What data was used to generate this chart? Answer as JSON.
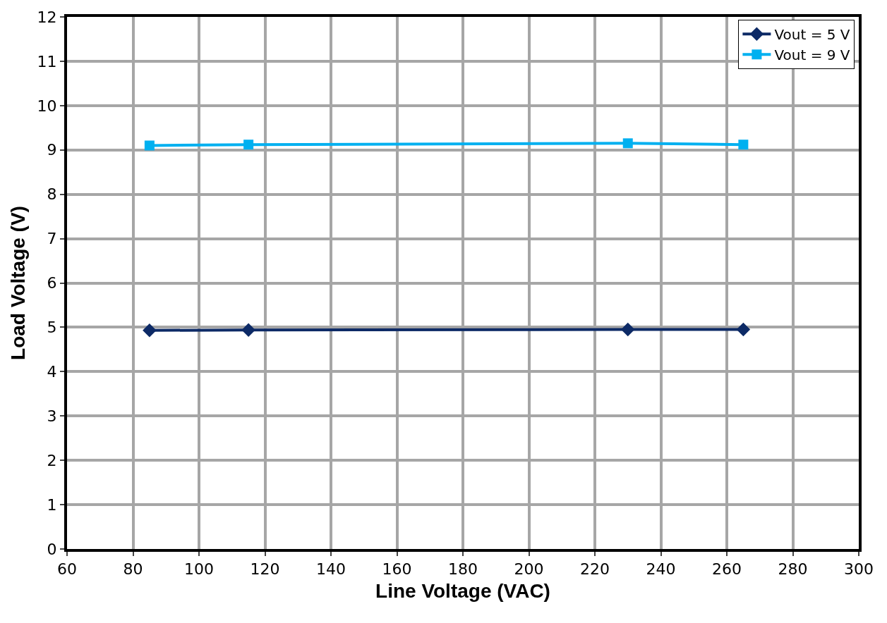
{
  "chart_data": {
    "type": "line",
    "xlabel": "Line Voltage (VAC)",
    "ylabel": "Load Voltage (V)",
    "x": [
      85,
      115,
      230,
      265
    ],
    "series": [
      {
        "name": "Vout = 5 V",
        "color": "#0d2a66",
        "marker": "diamond",
        "values": [
          4.93,
          4.94,
          4.95,
          4.95
        ]
      },
      {
        "name": "Vout = 9 V",
        "color": "#00b0f0",
        "marker": "square",
        "values": [
          9.1,
          9.12,
          9.15,
          9.12
        ]
      }
    ],
    "xlim": [
      60,
      300
    ],
    "xticks": [
      60,
      80,
      100,
      120,
      140,
      160,
      180,
      200,
      220,
      240,
      260,
      280,
      300
    ],
    "ylim": [
      0,
      12
    ],
    "yticks": [
      0,
      1,
      2,
      3,
      4,
      5,
      6,
      7,
      8,
      9,
      10,
      11,
      12
    ],
    "grid": true,
    "legend": "top right",
    "line_style": "solid"
  }
}
